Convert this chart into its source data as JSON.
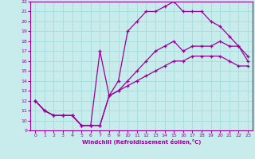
{
  "xlabel": "Windchill (Refroidissement éolien,°C)",
  "xlim": [
    -0.5,
    23.5
  ],
  "ylim": [
    9,
    22
  ],
  "xticks": [
    0,
    1,
    2,
    3,
    4,
    5,
    6,
    7,
    8,
    9,
    10,
    11,
    12,
    13,
    14,
    15,
    16,
    17,
    18,
    19,
    20,
    21,
    22,
    23
  ],
  "yticks": [
    9,
    10,
    11,
    12,
    13,
    14,
    15,
    16,
    17,
    18,
    19,
    20,
    21,
    22
  ],
  "background_color": "#c8ecec",
  "line_color": "#990099",
  "grid_color": "#aadddd",
  "line1_x": [
    0,
    1,
    2,
    3,
    4,
    5,
    6,
    7,
    8,
    9,
    10,
    11,
    12,
    13,
    14,
    15,
    16,
    17,
    18,
    19,
    20,
    21,
    22,
    23
  ],
  "line1_y": [
    12,
    11,
    10.5,
    10.5,
    10.5,
    9.5,
    9.5,
    9.5,
    12.5,
    13,
    13.5,
    14,
    14.5,
    15,
    15.5,
    16,
    16,
    16.5,
    16.5,
    16.5,
    16.5,
    16,
    15.5,
    15.5
  ],
  "line2_x": [
    0,
    1,
    2,
    3,
    4,
    5,
    6,
    7,
    8,
    9,
    10,
    11,
    12,
    13,
    14,
    15,
    16,
    17,
    18,
    19,
    20,
    21,
    22,
    23
  ],
  "line2_y": [
    12,
    11,
    10.5,
    10.5,
    10.5,
    9.5,
    9.5,
    17,
    12.5,
    14,
    19,
    20,
    21,
    21,
    21.5,
    22,
    21,
    21,
    21,
    20,
    19.5,
    18.5,
    17.5,
    16
  ],
  "line3_x": [
    0,
    1,
    2,
    3,
    4,
    5,
    6,
    7,
    8,
    9,
    10,
    11,
    12,
    13,
    14,
    15,
    16,
    17,
    18,
    19,
    20,
    21,
    22,
    23
  ],
  "line3_y": [
    12,
    11,
    10.5,
    10.5,
    10.5,
    9.5,
    9.5,
    9.5,
    12.5,
    13,
    14,
    15,
    16,
    17,
    17.5,
    18,
    17,
    17.5,
    17.5,
    17.5,
    18,
    17.5,
    17.5,
    16.5
  ]
}
